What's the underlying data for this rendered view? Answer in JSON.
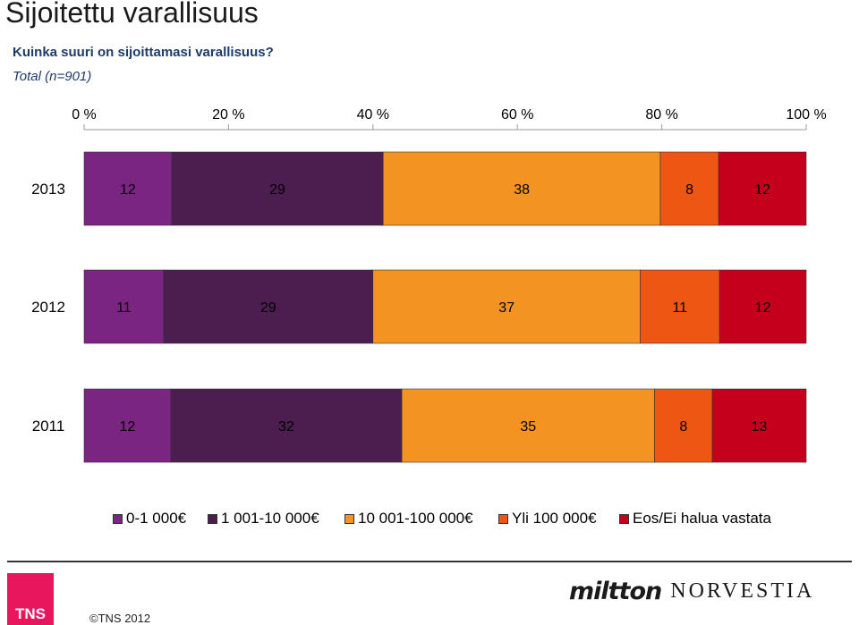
{
  "header": {
    "title": "Sijoitettu varallisuus",
    "question": "Kuinka suuri on sijoittamasi varallisuus?",
    "sample": "Total (n=901)"
  },
  "chart_data": {
    "type": "bar",
    "orientation": "horizontal",
    "stacked": true,
    "percent_axis": true,
    "categories": [
      "2013",
      "2012",
      "2011"
    ],
    "x_ticks": [
      "0 %",
      "20 %",
      "40 %",
      "60 %",
      "80 %",
      "100 %"
    ],
    "xlim": [
      0,
      100
    ],
    "legend_position": "bottom",
    "series": [
      {
        "name": "0-1 000€",
        "color": "#7b2583",
        "values": [
          12,
          11,
          12
        ]
      },
      {
        "name": "1 001-10 000€",
        "color": "#4b1e4f",
        "values": [
          29,
          29,
          32
        ]
      },
      {
        "name": "10 001-100 000€",
        "color": "#f39322",
        "values": [
          38,
          37,
          35
        ]
      },
      {
        "name": "Yli 100 000€",
        "color": "#ee5614",
        "values": [
          8,
          11,
          8
        ]
      },
      {
        "name": "Eos/Ei halua vastata",
        "color": "#c4001d",
        "values": [
          12,
          12,
          13
        ]
      }
    ]
  },
  "footer": {
    "copyright": "©TNS 2012",
    "tns_logo_text": "TNS",
    "partner_logo_a": "miltton",
    "partner_logo_b": "NORVESTIA"
  }
}
